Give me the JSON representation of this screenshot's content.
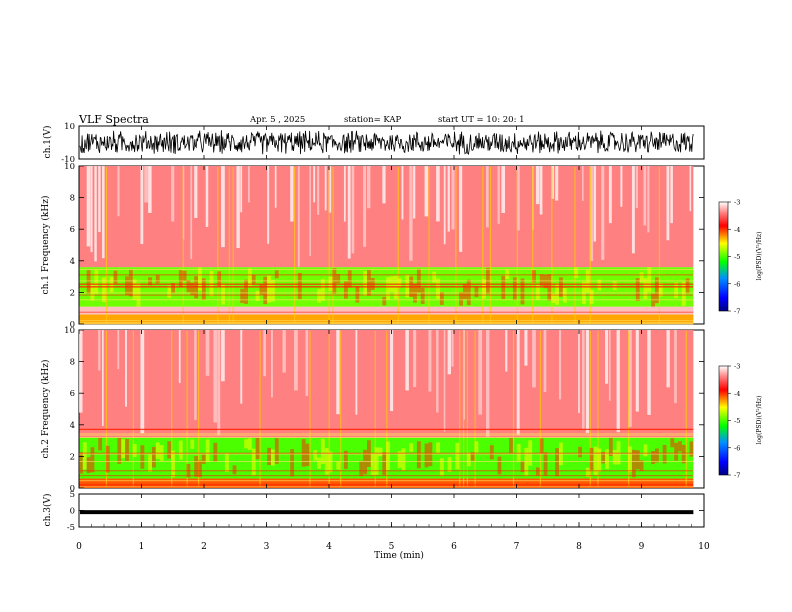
{
  "header": {
    "title": "VLF Spectra",
    "date": "Apr. 5 , 2025",
    "station": "station= KAP",
    "start": "start UT = 10: 20: 1"
  },
  "colors": {
    "spec_low": "#0000ff",
    "spec_mid": "#00ff00",
    "spec_yellow": "#ffff00",
    "spec_high": "#ff0000",
    "background": "#ffffff",
    "trace": "#000000"
  },
  "chart_data": [
    {
      "type": "line",
      "panel": "waveform-ch1",
      "ylabel": "ch.1(V)",
      "ylim": [
        -10,
        10
      ],
      "yticks": [
        "10",
        "-10"
      ],
      "x_range_min": [
        0,
        9.83
      ],
      "description_of_signal": "dense noisy waveform between about -8 and 8 V"
    },
    {
      "type": "heatmap",
      "panel": "spectrogram-ch1",
      "ylabel": "ch.1 Frequency (kHz)",
      "ylim": [
        0,
        10
      ],
      "yticks": [
        "0",
        "2",
        "4",
        "6",
        "8",
        "10"
      ],
      "colorbar": {
        "label": "log(PSD)(V²/Hz)",
        "ticks": [
          "-3",
          "-4",
          "-5",
          "-6",
          "-7"
        ],
        "range": [
          -7,
          -3
        ]
      },
      "bands": [
        {
          "from_khz": 0,
          "to_khz": 0.6,
          "level": -4.3
        },
        {
          "from_khz": 0.6,
          "to_khz": 1.1,
          "level": -3.2
        },
        {
          "from_khz": 1.1,
          "to_khz": 3.6,
          "level": -4.9
        },
        {
          "from_khz": 3.6,
          "to_khz": 10,
          "level": -3.4
        }
      ]
    },
    {
      "type": "heatmap",
      "panel": "spectrogram-ch2",
      "ylabel": "ch.2 Frequency (kHz)",
      "ylim": [
        0,
        10
      ],
      "yticks": [
        "0",
        "2",
        "4",
        "6",
        "8",
        "10"
      ],
      "colorbar": {
        "label": "log(PSD)(V²/Hz)",
        "ticks": [
          "-3",
          "-4",
          "-5",
          "-6",
          "-7"
        ],
        "range": [
          -7,
          -3
        ]
      },
      "bands": [
        {
          "from_khz": 0,
          "to_khz": 0.6,
          "level": -4.1
        },
        {
          "from_khz": 0.6,
          "to_khz": 3.2,
          "level": -5.0
        },
        {
          "from_khz": 3.2,
          "to_khz": 10,
          "level": -3.4
        }
      ]
    },
    {
      "type": "line",
      "panel": "waveform-ch3",
      "ylabel": "ch.3(V)",
      "ylim": [
        -5,
        5
      ],
      "yticks": [
        "5",
        "0",
        "-5"
      ],
      "level_v": -0.5,
      "band_v": [
        -1.1,
        0.1
      ]
    }
  ],
  "x_axis": {
    "label": "Time (min)",
    "ticks": [
      "0",
      "1",
      "2",
      "3",
      "4",
      "5",
      "6",
      "7",
      "8",
      "9",
      "10"
    ],
    "xlim": [
      0,
      10
    ],
    "data_end": 9.83
  }
}
